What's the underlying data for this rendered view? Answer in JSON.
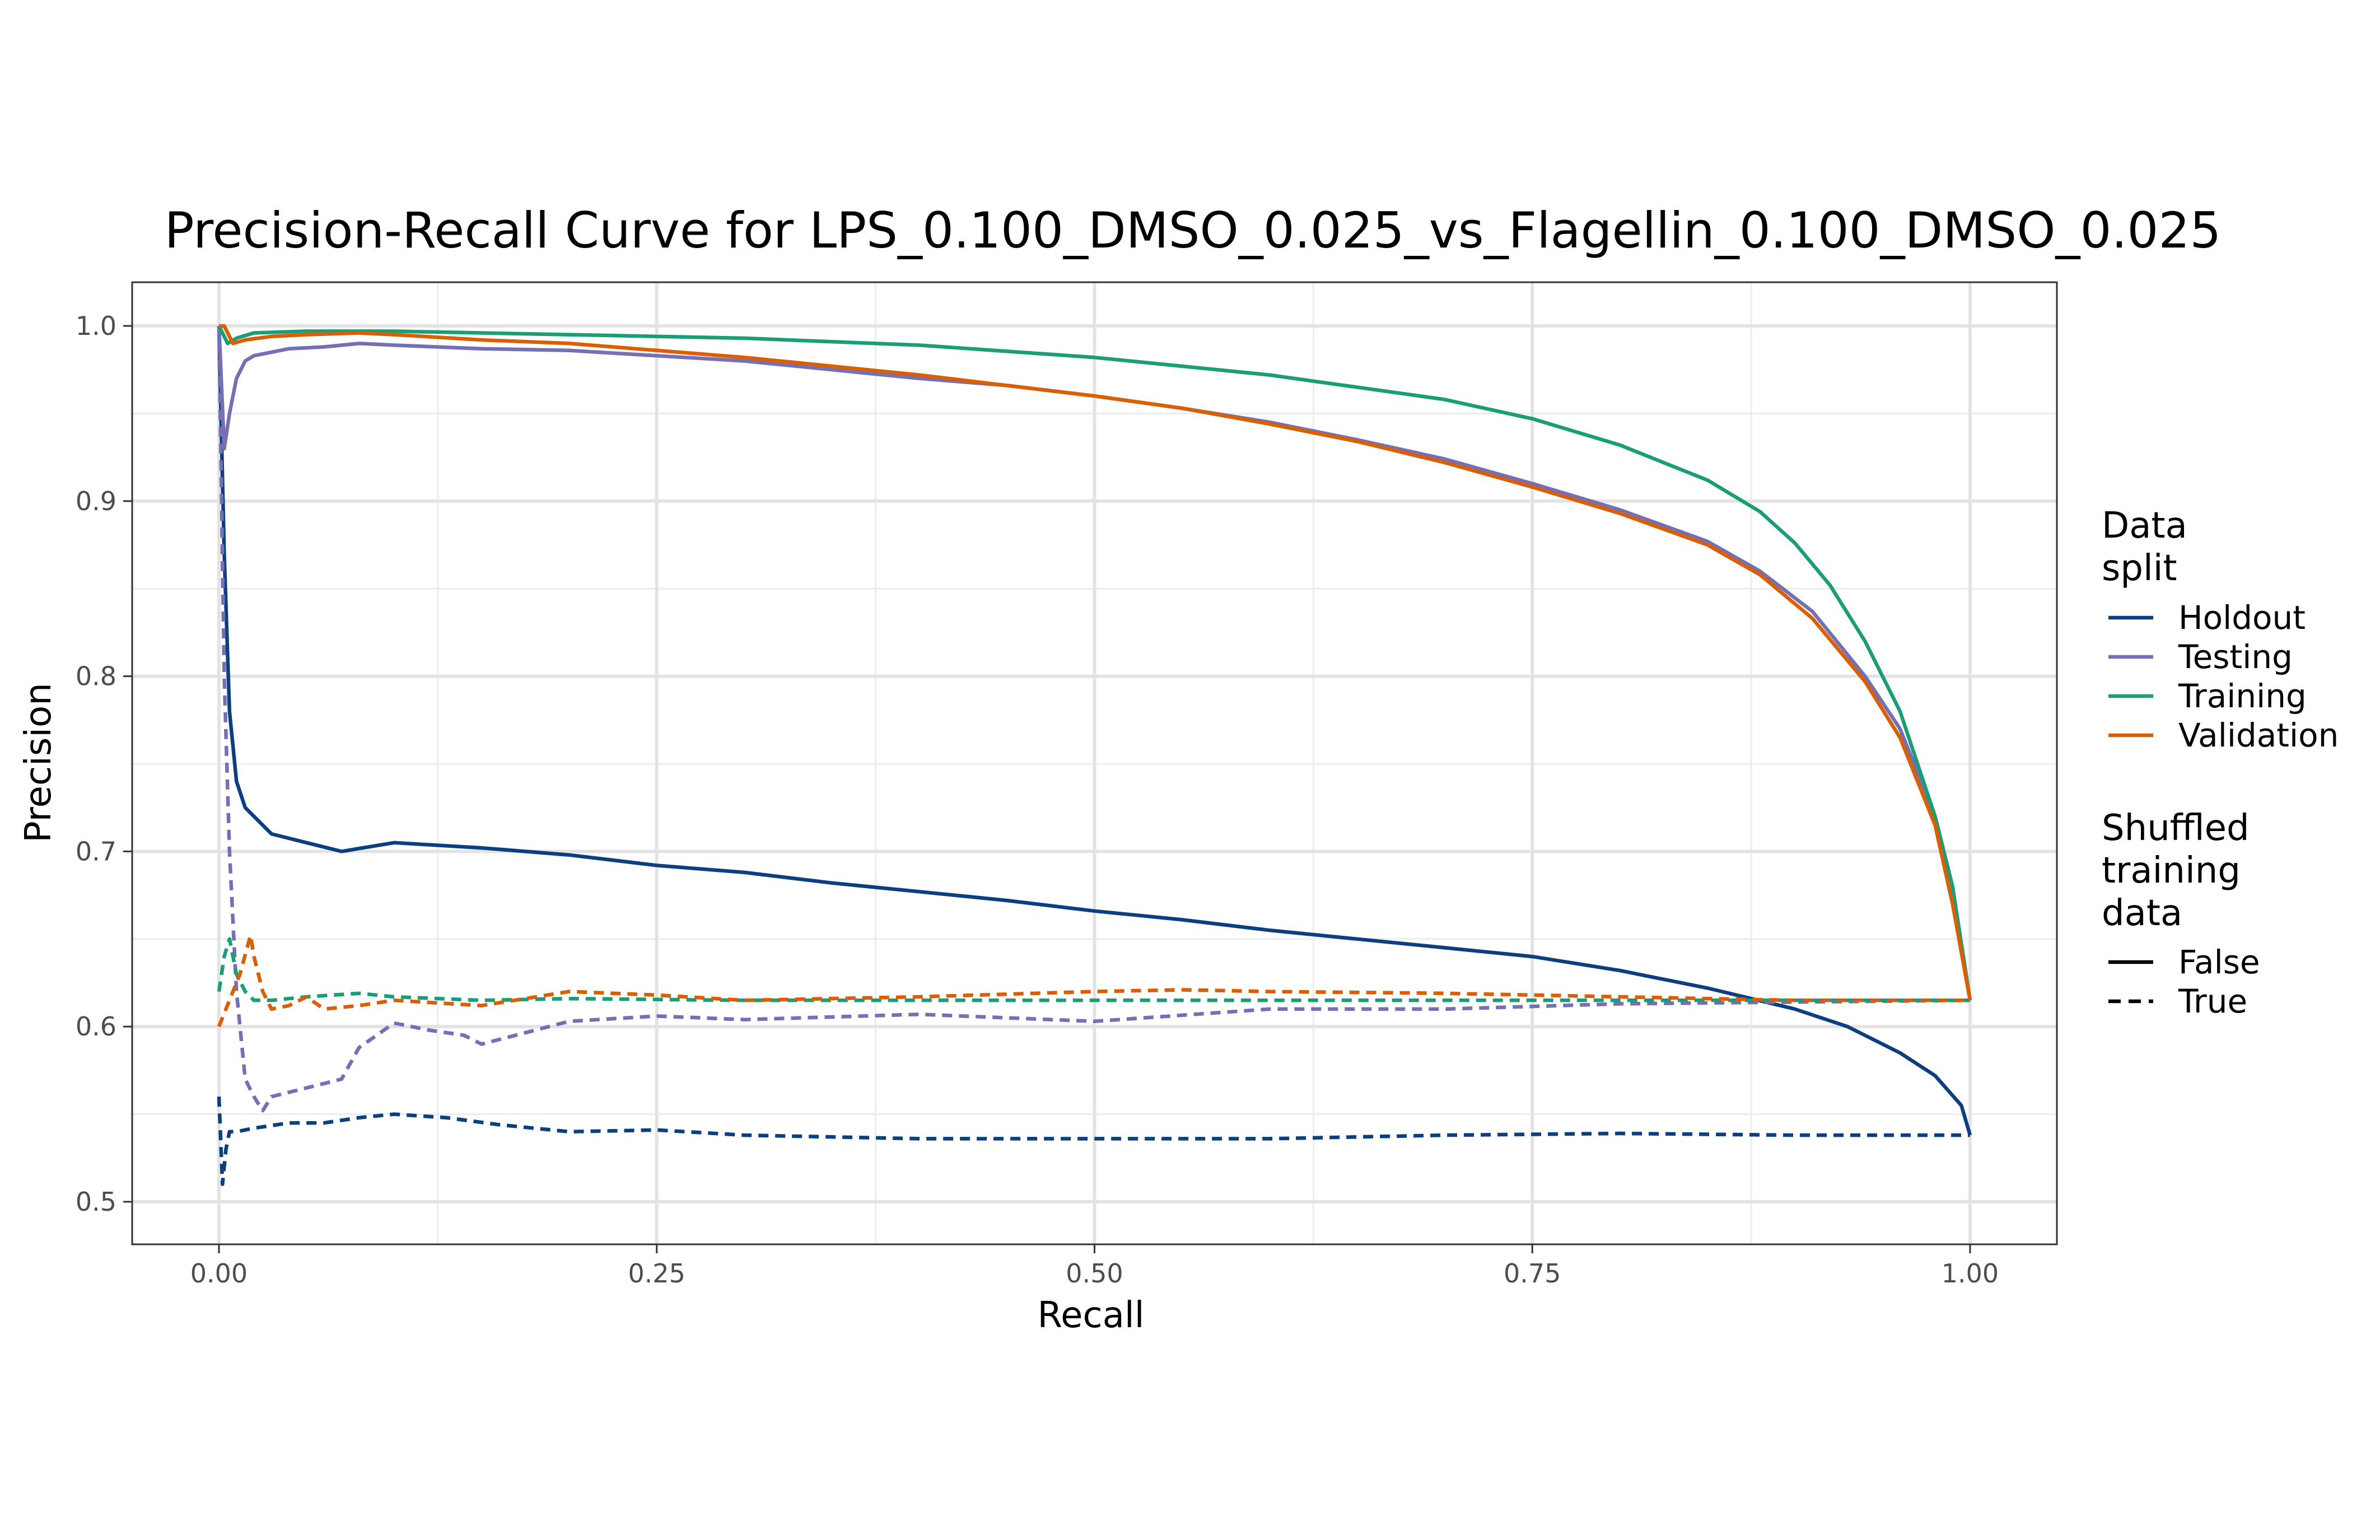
{
  "chart_data": {
    "type": "line",
    "title": "Precision-Recall Curve for LPS_0.100_DMSO_0.025_vs_Flagellin_0.100_DMSO_0.025",
    "xlabel": "Recall",
    "ylabel": "Precision",
    "xlim": [
      0,
      1
    ],
    "ylim": [
      0.5,
      1.0
    ],
    "x_ticks": [
      "0.00",
      "0.25",
      "0.50",
      "0.75",
      "1.00"
    ],
    "y_ticks": [
      "0.5",
      "0.6",
      "0.7",
      "0.8",
      "0.9",
      "1.0"
    ],
    "grid": true,
    "legend_position": "right",
    "legend": {
      "color_title": "Data\nsplit",
      "color_entries": [
        {
          "label": "Holdout",
          "color": "#0B3F80"
        },
        {
          "label": "Testing",
          "color": "#7570B3"
        },
        {
          "label": "Training",
          "color": "#1B9E77"
        },
        {
          "label": "Validation",
          "color": "#D95F02"
        }
      ],
      "linetype_title": "Shuffled\ntraining\ndata",
      "linetype_entries": [
        {
          "label": "False",
          "style": "solid"
        },
        {
          "label": "True",
          "style": "dashed"
        }
      ]
    },
    "series": [
      {
        "split": "Holdout",
        "shuffled": "False",
        "color": "#0B3F80",
        "x": [
          0,
          0.003,
          0.006,
          0.01,
          0.015,
          0.02,
          0.03,
          0.05,
          0.07,
          0.1,
          0.15,
          0.2,
          0.25,
          0.3,
          0.35,
          0.4,
          0.45,
          0.5,
          0.55,
          0.6,
          0.65,
          0.7,
          0.75,
          0.8,
          0.85,
          0.9,
          0.93,
          0.96,
          0.98,
          0.995,
          1.0
        ],
        "y": [
          1.0,
          0.87,
          0.78,
          0.74,
          0.725,
          0.72,
          0.71,
          0.705,
          0.7,
          0.705,
          0.702,
          0.698,
          0.692,
          0.688,
          0.682,
          0.677,
          0.672,
          0.666,
          0.661,
          0.655,
          0.65,
          0.645,
          0.64,
          0.632,
          0.622,
          0.61,
          0.6,
          0.585,
          0.572,
          0.555,
          0.538
        ]
      },
      {
        "split": "Holdout",
        "shuffled": "True",
        "color": "#0B3F80",
        "x": [
          0,
          0.002,
          0.004,
          0.006,
          0.01,
          0.02,
          0.04,
          0.06,
          0.08,
          0.1,
          0.13,
          0.16,
          0.2,
          0.25,
          0.3,
          0.4,
          0.5,
          0.6,
          0.7,
          0.8,
          0.9,
          1.0
        ],
        "y": [
          0.56,
          0.51,
          0.53,
          0.54,
          0.54,
          0.542,
          0.545,
          0.545,
          0.548,
          0.55,
          0.548,
          0.544,
          0.54,
          0.541,
          0.538,
          0.536,
          0.536,
          0.536,
          0.538,
          0.539,
          0.538,
          0.538
        ]
      },
      {
        "split": "Testing",
        "shuffled": "False",
        "color": "#7570B3",
        "x": [
          0,
          0.003,
          0.006,
          0.01,
          0.015,
          0.02,
          0.04,
          0.06,
          0.08,
          0.1,
          0.15,
          0.2,
          0.25,
          0.3,
          0.35,
          0.4,
          0.45,
          0.5,
          0.55,
          0.6,
          0.65,
          0.7,
          0.75,
          0.8,
          0.85,
          0.88,
          0.91,
          0.94,
          0.96,
          0.98,
          0.99,
          1.0
        ],
        "y": [
          1.0,
          0.93,
          0.95,
          0.97,
          0.98,
          0.983,
          0.987,
          0.988,
          0.99,
          0.989,
          0.987,
          0.986,
          0.983,
          0.98,
          0.975,
          0.97,
          0.966,
          0.96,
          0.953,
          0.945,
          0.935,
          0.924,
          0.91,
          0.895,
          0.877,
          0.86,
          0.837,
          0.8,
          0.77,
          0.72,
          0.68,
          0.615
        ]
      },
      {
        "split": "Testing",
        "shuffled": "True",
        "color": "#7570B3",
        "x": [
          0,
          0.003,
          0.006,
          0.01,
          0.015,
          0.02,
          0.025,
          0.03,
          0.05,
          0.07,
          0.08,
          0.1,
          0.12,
          0.14,
          0.15,
          0.2,
          0.25,
          0.3,
          0.4,
          0.5,
          0.6,
          0.7,
          0.8,
          0.9,
          1.0
        ],
        "y": [
          1.0,
          0.8,
          0.7,
          0.62,
          0.57,
          0.56,
          0.552,
          0.56,
          0.565,
          0.57,
          0.588,
          0.602,
          0.598,
          0.595,
          0.59,
          0.603,
          0.606,
          0.604,
          0.607,
          0.603,
          0.61,
          0.61,
          0.613,
          0.614,
          0.615
        ]
      },
      {
        "split": "Training",
        "shuffled": "False",
        "color": "#1B9E77",
        "x": [
          0,
          0.005,
          0.01,
          0.02,
          0.05,
          0.1,
          0.15,
          0.2,
          0.3,
          0.4,
          0.5,
          0.6,
          0.7,
          0.75,
          0.8,
          0.85,
          0.88,
          0.9,
          0.92,
          0.94,
          0.96,
          0.98,
          0.99,
          1.0
        ],
        "y": [
          1.0,
          0.99,
          0.993,
          0.996,
          0.997,
          0.997,
          0.996,
          0.995,
          0.993,
          0.989,
          0.982,
          0.972,
          0.958,
          0.947,
          0.932,
          0.912,
          0.894,
          0.876,
          0.852,
          0.82,
          0.78,
          0.72,
          0.68,
          0.615
        ]
      },
      {
        "split": "Training",
        "shuffled": "True",
        "color": "#1B9E77",
        "x": [
          0,
          0.003,
          0.006,
          0.01,
          0.015,
          0.02,
          0.03,
          0.05,
          0.08,
          0.1,
          0.15,
          0.2,
          0.3,
          0.4,
          0.5,
          0.6,
          0.7,
          0.8,
          0.9,
          1.0
        ],
        "y": [
          0.62,
          0.64,
          0.65,
          0.63,
          0.62,
          0.615,
          0.615,
          0.617,
          0.619,
          0.617,
          0.615,
          0.616,
          0.615,
          0.615,
          0.615,
          0.615,
          0.615,
          0.615,
          0.615,
          0.615
        ]
      },
      {
        "split": "Validation",
        "shuffled": "False",
        "color": "#D95F02",
        "x": [
          0,
          0.003,
          0.008,
          0.015,
          0.03,
          0.05,
          0.08,
          0.1,
          0.15,
          0.2,
          0.25,
          0.3,
          0.35,
          0.4,
          0.45,
          0.5,
          0.55,
          0.6,
          0.65,
          0.7,
          0.75,
          0.8,
          0.85,
          0.88,
          0.91,
          0.94,
          0.96,
          0.98,
          0.99,
          1.0
        ],
        "y": [
          1.0,
          1.0,
          0.99,
          0.992,
          0.994,
          0.995,
          0.996,
          0.995,
          0.992,
          0.99,
          0.986,
          0.982,
          0.977,
          0.972,
          0.966,
          0.96,
          0.953,
          0.944,
          0.934,
          0.922,
          0.908,
          0.893,
          0.875,
          0.858,
          0.833,
          0.797,
          0.765,
          0.715,
          0.67,
          0.615
        ]
      },
      {
        "split": "Validation",
        "shuffled": "True",
        "color": "#D95F02",
        "x": [
          0,
          0.004,
          0.008,
          0.012,
          0.018,
          0.02,
          0.025,
          0.03,
          0.04,
          0.05,
          0.06,
          0.08,
          0.1,
          0.15,
          0.2,
          0.25,
          0.3,
          0.4,
          0.5,
          0.55,
          0.6,
          0.7,
          0.8,
          0.9,
          1.0
        ],
        "y": [
          0.6,
          0.61,
          0.62,
          0.63,
          0.652,
          0.64,
          0.62,
          0.61,
          0.612,
          0.617,
          0.61,
          0.612,
          0.615,
          0.612,
          0.62,
          0.618,
          0.615,
          0.617,
          0.62,
          0.621,
          0.62,
          0.619,
          0.617,
          0.615,
          0.615
        ]
      }
    ]
  }
}
